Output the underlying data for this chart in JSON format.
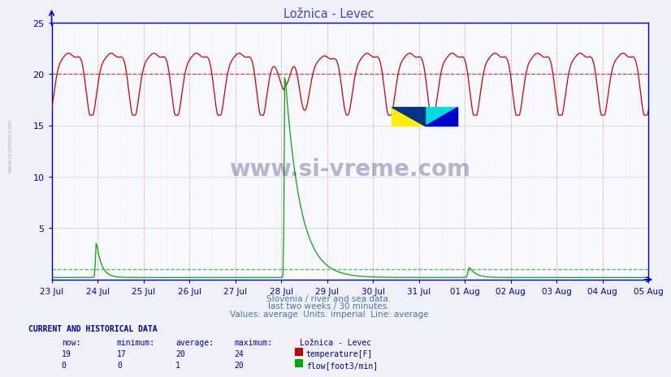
{
  "title": "Ložnica - Levec",
  "subtitle1": "Slovenia / river and sea data.",
  "subtitle2": "last two weeks / 30 minutes.",
  "subtitle3": "Values: average  Units: imperial  Line: average",
  "xlabel_ticks": [
    "23 Jul",
    "24 Jul",
    "25 Jul",
    "26 Jul",
    "27 Jul",
    "28 Jul",
    "29 Jul",
    "30 Jul",
    "31 Jul",
    "01 Aug",
    "02 Aug",
    "03 Aug",
    "04 Aug",
    "05 Aug"
  ],
  "ylim": [
    0,
    25
  ],
  "yticks": [
    5,
    10,
    15,
    20,
    25
  ],
  "bg_color": "#f0f0f8",
  "plot_bg_color": "#f8f8ff",
  "temp_color": "#cc0000",
  "flow_color": "#00aa00",
  "avg_temp_line": 20,
  "avg_flow_line": 1,
  "temp_max": 24,
  "temp_min": 17,
  "temp_now": 19,
  "temp_avg": 20,
  "flow_max": 20,
  "flow_min": 0,
  "flow_now": 0,
  "flow_avg": 1,
  "title_color": "#4444cc",
  "subtitle_color": "#4477aa",
  "axis_color": "#0000cc",
  "tick_color": "#0000aa",
  "label_color": "#0000aa",
  "watermark": "www.si-vreme.com",
  "watermark_color": "#1a1a6e",
  "n_points": 672,
  "days": 14
}
